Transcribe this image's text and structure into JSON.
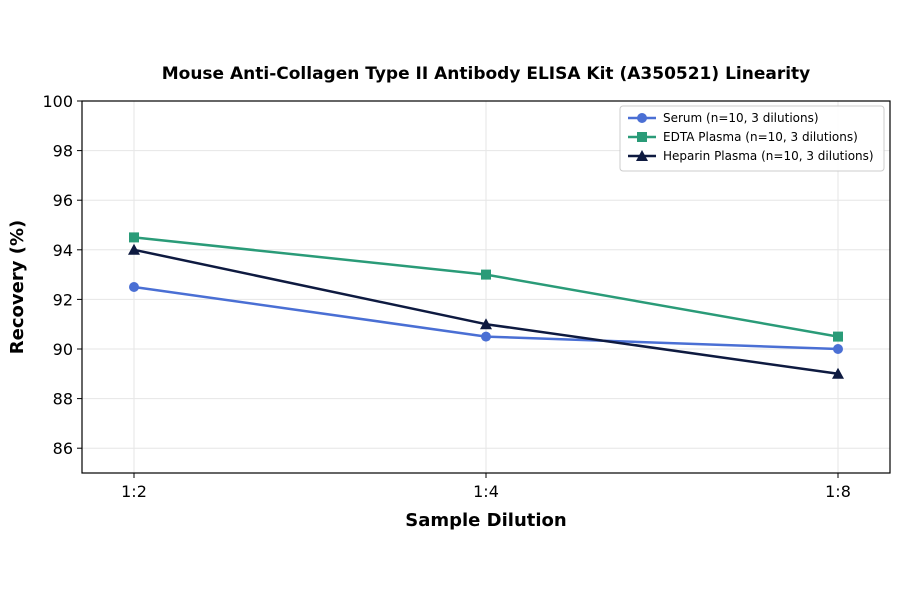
{
  "chart_data": {
    "type": "line",
    "title": "Mouse Anti-Collagen Type II Antibody ELISA Kit (A350521) Linearity",
    "xlabel": "Sample Dilution",
    "ylabel": "Recovery (%)",
    "categories": [
      "1:2",
      "1:4",
      "1:8"
    ],
    "ylim": [
      85,
      100
    ],
    "yticks": [
      86,
      88,
      90,
      92,
      94,
      96,
      98,
      100
    ],
    "grid": true,
    "legend_position": "top-right",
    "series": [
      {
        "name": "Serum (n=10, 3 dilutions)",
        "values": [
          92.5,
          90.5,
          90.0
        ],
        "color": "#4a6fd4",
        "marker": "circle"
      },
      {
        "name": "EDTA Plasma (n=10, 3 dilutions)",
        "values": [
          94.5,
          93.0,
          90.5
        ],
        "color": "#2a9b78",
        "marker": "square"
      },
      {
        "name": "Heparin Plasma (n=10, 3 dilutions)",
        "values": [
          94.0,
          91.0,
          89.0
        ],
        "color": "#0e1a40",
        "marker": "triangle"
      }
    ]
  }
}
